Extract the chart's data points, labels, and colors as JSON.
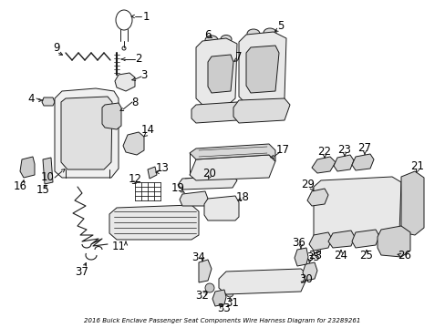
{
  "background_color": "#ffffff",
  "line_color": "#1a1a1a",
  "text_color": "#000000",
  "font_size": 8.5,
  "diagram_title": "2016 Buick Enclave Passenger Seat Components Wire Harness Diagram for 23289261",
  "lw": 0.7
}
